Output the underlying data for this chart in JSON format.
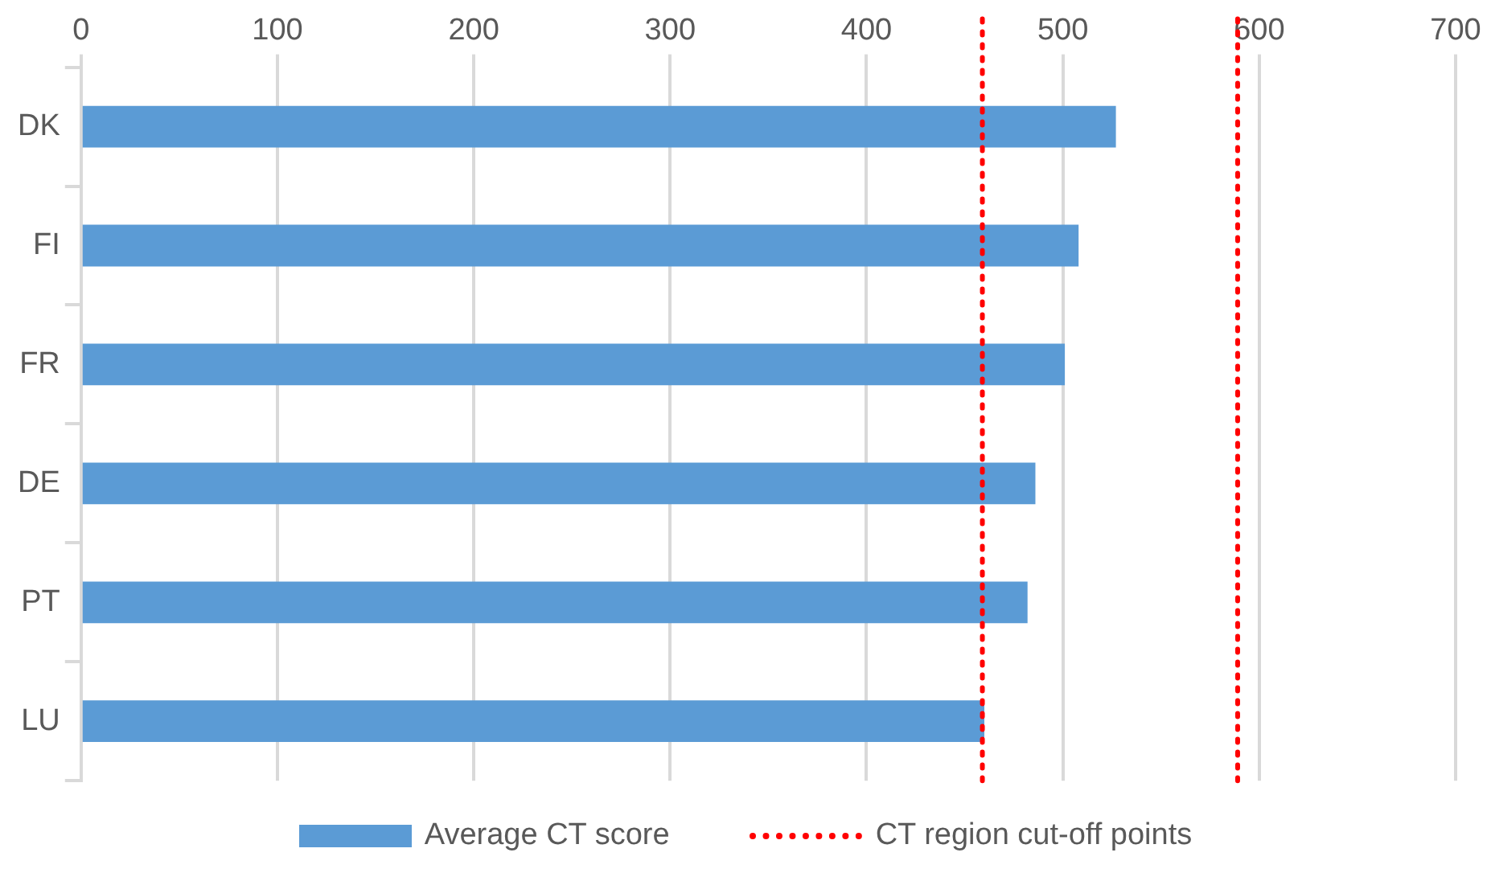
{
  "chart_data": {
    "type": "bar",
    "orientation": "horizontal",
    "categories": [
      "DK",
      "FI",
      "FR",
      "DE",
      "PT",
      "LU"
    ],
    "series": [
      {
        "name": "Average CT score",
        "color": "#5b9bd5",
        "values": [
          527,
          508,
          501,
          486,
          482,
          460
        ]
      }
    ],
    "xlim": [
      0,
      700
    ],
    "xticks": [
      0,
      100,
      200,
      300,
      400,
      500,
      600,
      700
    ],
    "grid": "x",
    "legend": "bottom",
    "ref_lines": [
      {
        "axis": "x",
        "value": 459,
        "label": "CT region cut-off points",
        "color": "#ff0000",
        "line_style": "dotted"
      },
      {
        "axis": "x",
        "value": 589,
        "label": null,
        "color": "#ff0000",
        "line_style": "dotted"
      }
    ]
  }
}
